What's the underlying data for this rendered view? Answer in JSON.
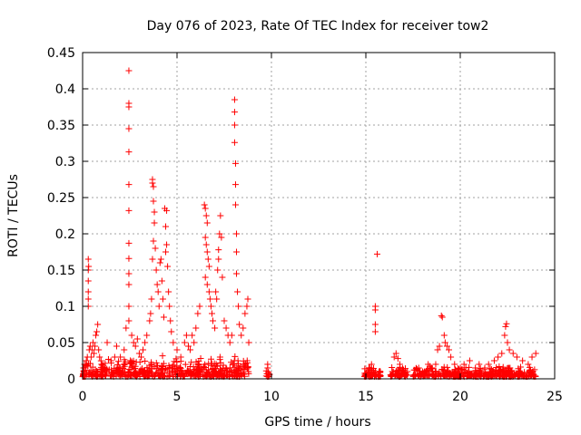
{
  "chart_data": {
    "type": "scatter",
    "title": "Day 076 of 2023, Rate Of TEC Index for receiver tow2",
    "xlabel": "GPS time / hours",
    "ylabel": "ROTI / TECUs",
    "xlim": [
      0,
      25
    ],
    "ylim": [
      0,
      0.45
    ],
    "xticks": [
      0,
      5,
      10,
      15,
      20,
      25
    ],
    "yticks": [
      0,
      0.05,
      0.1,
      0.15,
      0.2,
      0.25,
      0.3,
      0.35,
      0.4,
      0.45
    ],
    "xtick_labels": [
      "0",
      "5",
      "10",
      "15",
      "20",
      "25"
    ],
    "ytick_labels": [
      "0",
      "0.05",
      "0.1",
      "0.15",
      "0.2",
      "0.25",
      "0.3",
      "0.35",
      "0.4",
      "0.45"
    ],
    "grid": true,
    "marker": "+",
    "color": "#ff0000",
    "series": [
      {
        "name": "ROTI",
        "points": [
          [
            0.05,
            0.015
          ],
          [
            0.1,
            0.02
          ],
          [
            0.15,
            0.012
          ],
          [
            0.2,
            0.025
          ],
          [
            0.25,
            0.03
          ],
          [
            0.3,
            0.1
          ],
          [
            0.3,
            0.11
          ],
          [
            0.3,
            0.12
          ],
          [
            0.3,
            0.135
          ],
          [
            0.3,
            0.15
          ],
          [
            0.3,
            0.165
          ],
          [
            0.32,
            0.155
          ],
          [
            0.35,
            0.04
          ],
          [
            0.4,
            0.045
          ],
          [
            0.45,
            0.03
          ],
          [
            0.5,
            0.04
          ],
          [
            0.55,
            0.05
          ],
          [
            0.6,
            0.035
          ],
          [
            0.65,
            0.045
          ],
          [
            0.7,
            0.06
          ],
          [
            0.75,
            0.065
          ],
          [
            0.8,
            0.075
          ],
          [
            0.85,
            0.04
          ],
          [
            0.9,
            0.03
          ],
          [
            1.0,
            0.02
          ],
          [
            1.2,
            0.015
          ],
          [
            1.3,
            0.05
          ],
          [
            1.5,
            0.025
          ],
          [
            1.7,
            0.03
          ],
          [
            1.8,
            0.045
          ],
          [
            2.0,
            0.03
          ],
          [
            2.2,
            0.04
          ],
          [
            2.3,
            0.07
          ],
          [
            2.45,
            0.425
          ],
          [
            2.45,
            0.38
          ],
          [
            2.45,
            0.375
          ],
          [
            2.45,
            0.345
          ],
          [
            2.45,
            0.313
          ],
          [
            2.45,
            0.268
          ],
          [
            2.45,
            0.232
          ],
          [
            2.45,
            0.187
          ],
          [
            2.45,
            0.166
          ],
          [
            2.45,
            0.145
          ],
          [
            2.45,
            0.13
          ],
          [
            2.45,
            0.1
          ],
          [
            2.45,
            0.08
          ],
          [
            2.6,
            0.06
          ],
          [
            2.7,
            0.05
          ],
          [
            2.8,
            0.045
          ],
          [
            2.9,
            0.055
          ],
          [
            3.0,
            0.035
          ],
          [
            3.1,
            0.03
          ],
          [
            3.2,
            0.04
          ],
          [
            3.3,
            0.05
          ],
          [
            3.4,
            0.06
          ],
          [
            3.55,
            0.08
          ],
          [
            3.6,
            0.09
          ],
          [
            3.65,
            0.11
          ],
          [
            3.7,
            0.275
          ],
          [
            3.7,
            0.27
          ],
          [
            3.75,
            0.265
          ],
          [
            3.75,
            0.245
          ],
          [
            3.8,
            0.23
          ],
          [
            3.8,
            0.215
          ],
          [
            3.75,
            0.19
          ],
          [
            3.85,
            0.18
          ],
          [
            3.7,
            0.165
          ],
          [
            3.9,
            0.15
          ],
          [
            3.95,
            0.13
          ],
          [
            4.0,
            0.12
          ],
          [
            4.05,
            0.1
          ],
          [
            4.1,
            0.16
          ],
          [
            4.15,
            0.165
          ],
          [
            4.2,
            0.135
          ],
          [
            4.25,
            0.11
          ],
          [
            4.3,
            0.085
          ],
          [
            4.35,
            0.235
          ],
          [
            4.45,
            0.232
          ],
          [
            4.4,
            0.21
          ],
          [
            4.45,
            0.185
          ],
          [
            4.4,
            0.175
          ],
          [
            4.5,
            0.155
          ],
          [
            4.55,
            0.12
          ],
          [
            4.6,
            0.1
          ],
          [
            4.65,
            0.08
          ],
          [
            4.7,
            0.065
          ],
          [
            4.8,
            0.05
          ],
          [
            5.0,
            0.04
          ],
          [
            5.2,
            0.03
          ],
          [
            5.4,
            0.05
          ],
          [
            5.5,
            0.06
          ],
          [
            5.6,
            0.045
          ],
          [
            5.7,
            0.04
          ],
          [
            5.8,
            0.06
          ],
          [
            5.9,
            0.05
          ],
          [
            6.0,
            0.07
          ],
          [
            6.1,
            0.09
          ],
          [
            6.2,
            0.1
          ],
          [
            6.45,
            0.24
          ],
          [
            6.5,
            0.235
          ],
          [
            6.55,
            0.225
          ],
          [
            6.6,
            0.215
          ],
          [
            6.5,
            0.195
          ],
          [
            6.55,
            0.185
          ],
          [
            6.6,
            0.175
          ],
          [
            6.65,
            0.165
          ],
          [
            6.7,
            0.155
          ],
          [
            6.5,
            0.14
          ],
          [
            6.6,
            0.13
          ],
          [
            6.7,
            0.12
          ],
          [
            6.75,
            0.11
          ],
          [
            6.8,
            0.1
          ],
          [
            6.85,
            0.09
          ],
          [
            6.9,
            0.08
          ],
          [
            7.0,
            0.07
          ],
          [
            7.05,
            0.12
          ],
          [
            7.1,
            0.11
          ],
          [
            7.15,
            0.15
          ],
          [
            7.2,
            0.165
          ],
          [
            7.2,
            0.178
          ],
          [
            7.25,
            0.2
          ],
          [
            7.3,
            0.225
          ],
          [
            7.35,
            0.195
          ],
          [
            7.4,
            0.14
          ],
          [
            7.5,
            0.08
          ],
          [
            7.6,
            0.07
          ],
          [
            7.7,
            0.06
          ],
          [
            7.8,
            0.05
          ],
          [
            7.9,
            0.06
          ],
          [
            8.05,
            0.385
          ],
          [
            8.05,
            0.368
          ],
          [
            8.05,
            0.35
          ],
          [
            8.05,
            0.326
          ],
          [
            8.1,
            0.297
          ],
          [
            8.1,
            0.268
          ],
          [
            8.1,
            0.24
          ],
          [
            8.15,
            0.2
          ],
          [
            8.15,
            0.175
          ],
          [
            8.15,
            0.145
          ],
          [
            8.2,
            0.12
          ],
          [
            8.25,
            0.1
          ],
          [
            8.3,
            0.075
          ],
          [
            8.4,
            0.06
          ],
          [
            8.5,
            0.07
          ],
          [
            8.6,
            0.09
          ],
          [
            8.7,
            0.1
          ],
          [
            8.75,
            0.11
          ],
          [
            8.8,
            0.05
          ],
          [
            9.8,
            0.015
          ],
          [
            9.8,
            0.02
          ],
          [
            15.1,
            0.01
          ],
          [
            15.2,
            0.015
          ],
          [
            15.3,
            0.02
          ],
          [
            15.4,
            0.012
          ],
          [
            15.5,
            0.1
          ],
          [
            15.5,
            0.095
          ],
          [
            15.5,
            0.075
          ],
          [
            15.5,
            0.065
          ],
          [
            15.6,
            0.172
          ],
          [
            15.7,
            0.01
          ],
          [
            16.4,
            0.01
          ],
          [
            16.5,
            0.03
          ],
          [
            16.6,
            0.035
          ],
          [
            16.7,
            0.028
          ],
          [
            16.8,
            0.02
          ],
          [
            17.0,
            0.012
          ],
          [
            17.2,
            0.01
          ],
          [
            17.6,
            0.012
          ],
          [
            17.8,
            0.015
          ],
          [
            18.0,
            0.01
          ],
          [
            18.3,
            0.02
          ],
          [
            18.5,
            0.015
          ],
          [
            18.7,
            0.02
          ],
          [
            18.8,
            0.04
          ],
          [
            18.9,
            0.045
          ],
          [
            19.0,
            0.087
          ],
          [
            19.05,
            0.085
          ],
          [
            19.15,
            0.06
          ],
          [
            19.2,
            0.05
          ],
          [
            19.3,
            0.045
          ],
          [
            19.4,
            0.04
          ],
          [
            19.5,
            0.03
          ],
          [
            19.7,
            0.02
          ],
          [
            20.0,
            0.015
          ],
          [
            20.2,
            0.02
          ],
          [
            20.5,
            0.025
          ],
          [
            20.8,
            0.015
          ],
          [
            21.0,
            0.02
          ],
          [
            21.3,
            0.015
          ],
          [
            21.5,
            0.02
          ],
          [
            21.8,
            0.025
          ],
          [
            22.0,
            0.03
          ],
          [
            22.2,
            0.035
          ],
          [
            22.35,
            0.06
          ],
          [
            22.4,
            0.072
          ],
          [
            22.45,
            0.076
          ],
          [
            22.5,
            0.05
          ],
          [
            22.6,
            0.04
          ],
          [
            22.8,
            0.035
          ],
          [
            23.0,
            0.03
          ],
          [
            23.3,
            0.025
          ],
          [
            23.6,
            0.02
          ],
          [
            23.8,
            0.03
          ],
          [
            24.0,
            0.035
          ]
        ]
      }
    ],
    "bands": [
      {
        "x0": 0.0,
        "x1": 8.8,
        "ymax": 0.03
      },
      {
        "x0": 9.7,
        "x1": 9.9,
        "ymax": 0.01
      },
      {
        "x0": 14.9,
        "x1": 15.8,
        "ymax": 0.015
      },
      {
        "x0": 16.3,
        "x1": 17.2,
        "ymax": 0.015
      },
      {
        "x0": 17.5,
        "x1": 24.0,
        "ymax": 0.015
      }
    ]
  }
}
